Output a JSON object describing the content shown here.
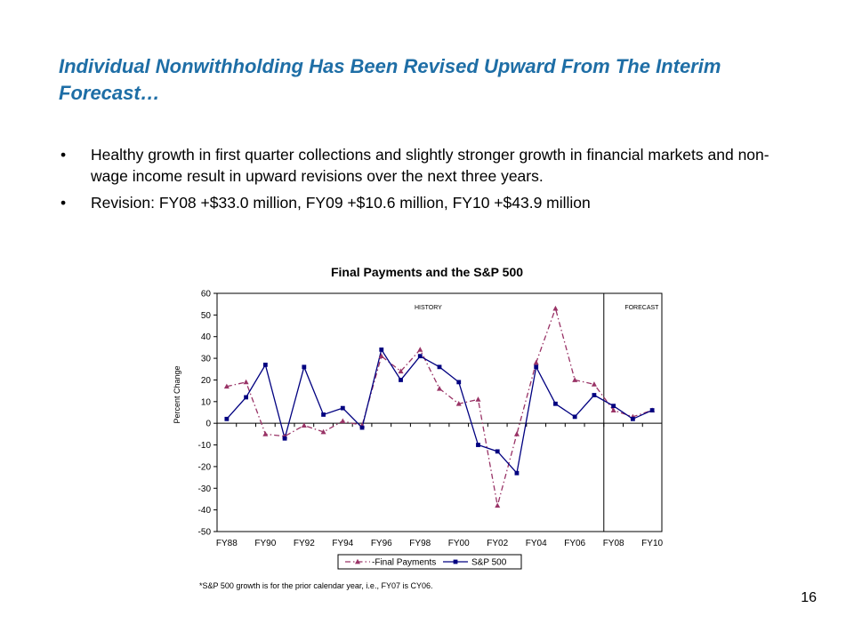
{
  "slide": {
    "title": "Individual Nonwithholding Has Been Revised Upward From The Interim Forecast…",
    "bullets": [
      "Healthy growth in first quarter collections and slightly stronger growth in financial markets and non-wage income result in upward revisions over the next three years.",
      "Revision: FY08 +$33.0 million, FY09 +$10.6 million, FY10 +$43.9 million"
    ],
    "bullet_glyph": "•",
    "footnote": "*S&P 500 growth is for the prior calendar year, i.e., FY07 is CY06.",
    "page_number": "16"
  },
  "chart_data": {
    "type": "line",
    "title": "Final Payments and the S&P 500",
    "ylabel": "Percent Change",
    "xlabel": "",
    "ylim": [
      -50,
      60
    ],
    "ytick_step": 10,
    "x": [
      "FY88",
      "FY89",
      "FY90",
      "FY91",
      "FY92",
      "FY93",
      "FY94",
      "FY95",
      "FY96",
      "FY97",
      "FY98",
      "FY99",
      "FY00",
      "FY01",
      "FY02",
      "FY03",
      "FY04",
      "FY05",
      "FY06",
      "FY07",
      "FY08",
      "FY09",
      "FY10"
    ],
    "x_tick_labels": [
      "FY88",
      "FY90",
      "FY92",
      "FY94",
      "FY96",
      "FY98",
      "FY00",
      "FY02",
      "FY04",
      "FY06",
      "FY08",
      "FY10"
    ],
    "series": [
      {
        "name": "Final Payments",
        "color": "#993366",
        "style": "dash-dot",
        "marker": "triangle",
        "values": [
          17,
          19,
          -5,
          -6,
          -1,
          -4,
          1,
          -1,
          31,
          24,
          34,
          16,
          9,
          11,
          -38,
          -5,
          28,
          53,
          20,
          18,
          6,
          3,
          6
        ]
      },
      {
        "name": "S&P 500",
        "color": "#000080",
        "style": "solid",
        "marker": "square",
        "values": [
          2,
          12,
          27,
          -7,
          26,
          4,
          7,
          -2,
          34,
          20,
          31,
          26,
          19,
          -10,
          -13,
          -23,
          26,
          9,
          3,
          13,
          8,
          2,
          6
        ]
      }
    ],
    "regions": [
      {
        "label": "HISTORY"
      },
      {
        "label": "FORECAST"
      }
    ],
    "forecast_start": "FY08",
    "legend_position": "bottom",
    "grid": false
  }
}
